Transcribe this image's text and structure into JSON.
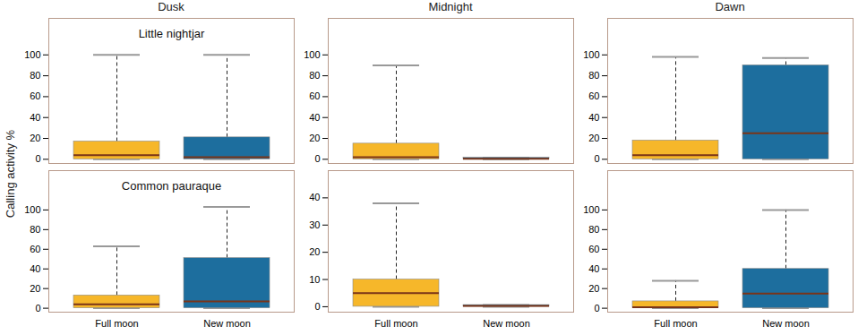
{
  "chart_data": {
    "type": "box",
    "y_label": "Calling activity %",
    "categories": [
      "Full moon",
      "New moon"
    ],
    "colors": [
      "#f6b72a",
      "#1d6e9e"
    ],
    "columns": [
      "Dusk",
      "Midnight",
      "Dawn"
    ],
    "rows": [
      "Little nightjar",
      "Common pauraque"
    ],
    "panels": [
      {
        "row": "Little nightjar",
        "column": "Dusk",
        "ylim": [
          -4,
          135
        ],
        "yticks": [
          0,
          20,
          40,
          60,
          80,
          100
        ],
        "boxes": [
          {
            "min": 0,
            "q1": 0,
            "median": 4,
            "q3": 17,
            "max": 100
          },
          {
            "min": 0,
            "q1": 0,
            "median": 2,
            "q3": 21,
            "max": 100
          }
        ]
      },
      {
        "row": "Little nightjar",
        "column": "Midnight",
        "ylim": [
          -4,
          135
        ],
        "yticks": [
          0,
          20,
          40,
          60,
          80,
          100
        ],
        "boxes": [
          {
            "min": 0,
            "q1": 0,
            "median": 2,
            "q3": 15,
            "max": 90
          },
          {
            "min": 0,
            "q1": 0,
            "median": 0.5,
            "q3": 1.5,
            "max": 1.5
          }
        ]
      },
      {
        "row": "Little nightjar",
        "column": "Dawn",
        "ylim": [
          -4,
          135
        ],
        "yticks": [
          0,
          20,
          40,
          60,
          80,
          100
        ],
        "boxes": [
          {
            "min": 0,
            "q1": 0,
            "median": 4,
            "q3": 18,
            "max": 98
          },
          {
            "min": 0,
            "q1": 0,
            "median": 25,
            "q3": 90,
            "max": 97
          }
        ]
      },
      {
        "row": "Common pauraque",
        "column": "Dusk",
        "ylim": [
          -4,
          140
        ],
        "yticks": [
          0,
          20,
          40,
          60,
          80,
          100
        ],
        "boxes": [
          {
            "min": 0,
            "q1": 0,
            "median": 4,
            "q3": 13,
            "max": 63
          },
          {
            "min": 0,
            "q1": 0,
            "median": 7,
            "q3": 51,
            "max": 103
          }
        ]
      },
      {
        "row": "Common pauraque",
        "column": "Midnight",
        "ylim": [
          -2,
          50
        ],
        "yticks": [
          0,
          10,
          20,
          30,
          40
        ],
        "boxes": [
          {
            "min": 0,
            "q1": 0,
            "median": 5,
            "q3": 10,
            "max": 38
          },
          {
            "min": 0,
            "q1": 0,
            "median": 0.3,
            "q3": 0.6,
            "max": 0.6
          }
        ]
      },
      {
        "row": "Common pauraque",
        "column": "Dawn",
        "ylim": [
          -4,
          140
        ],
        "yticks": [
          0,
          20,
          40,
          60,
          80,
          100
        ],
        "boxes": [
          {
            "min": 0,
            "q1": 0,
            "median": 1,
            "q3": 7,
            "max": 28
          },
          {
            "min": 0,
            "q1": 0,
            "median": 15,
            "q3": 40,
            "max": 100
          }
        ]
      }
    ]
  }
}
